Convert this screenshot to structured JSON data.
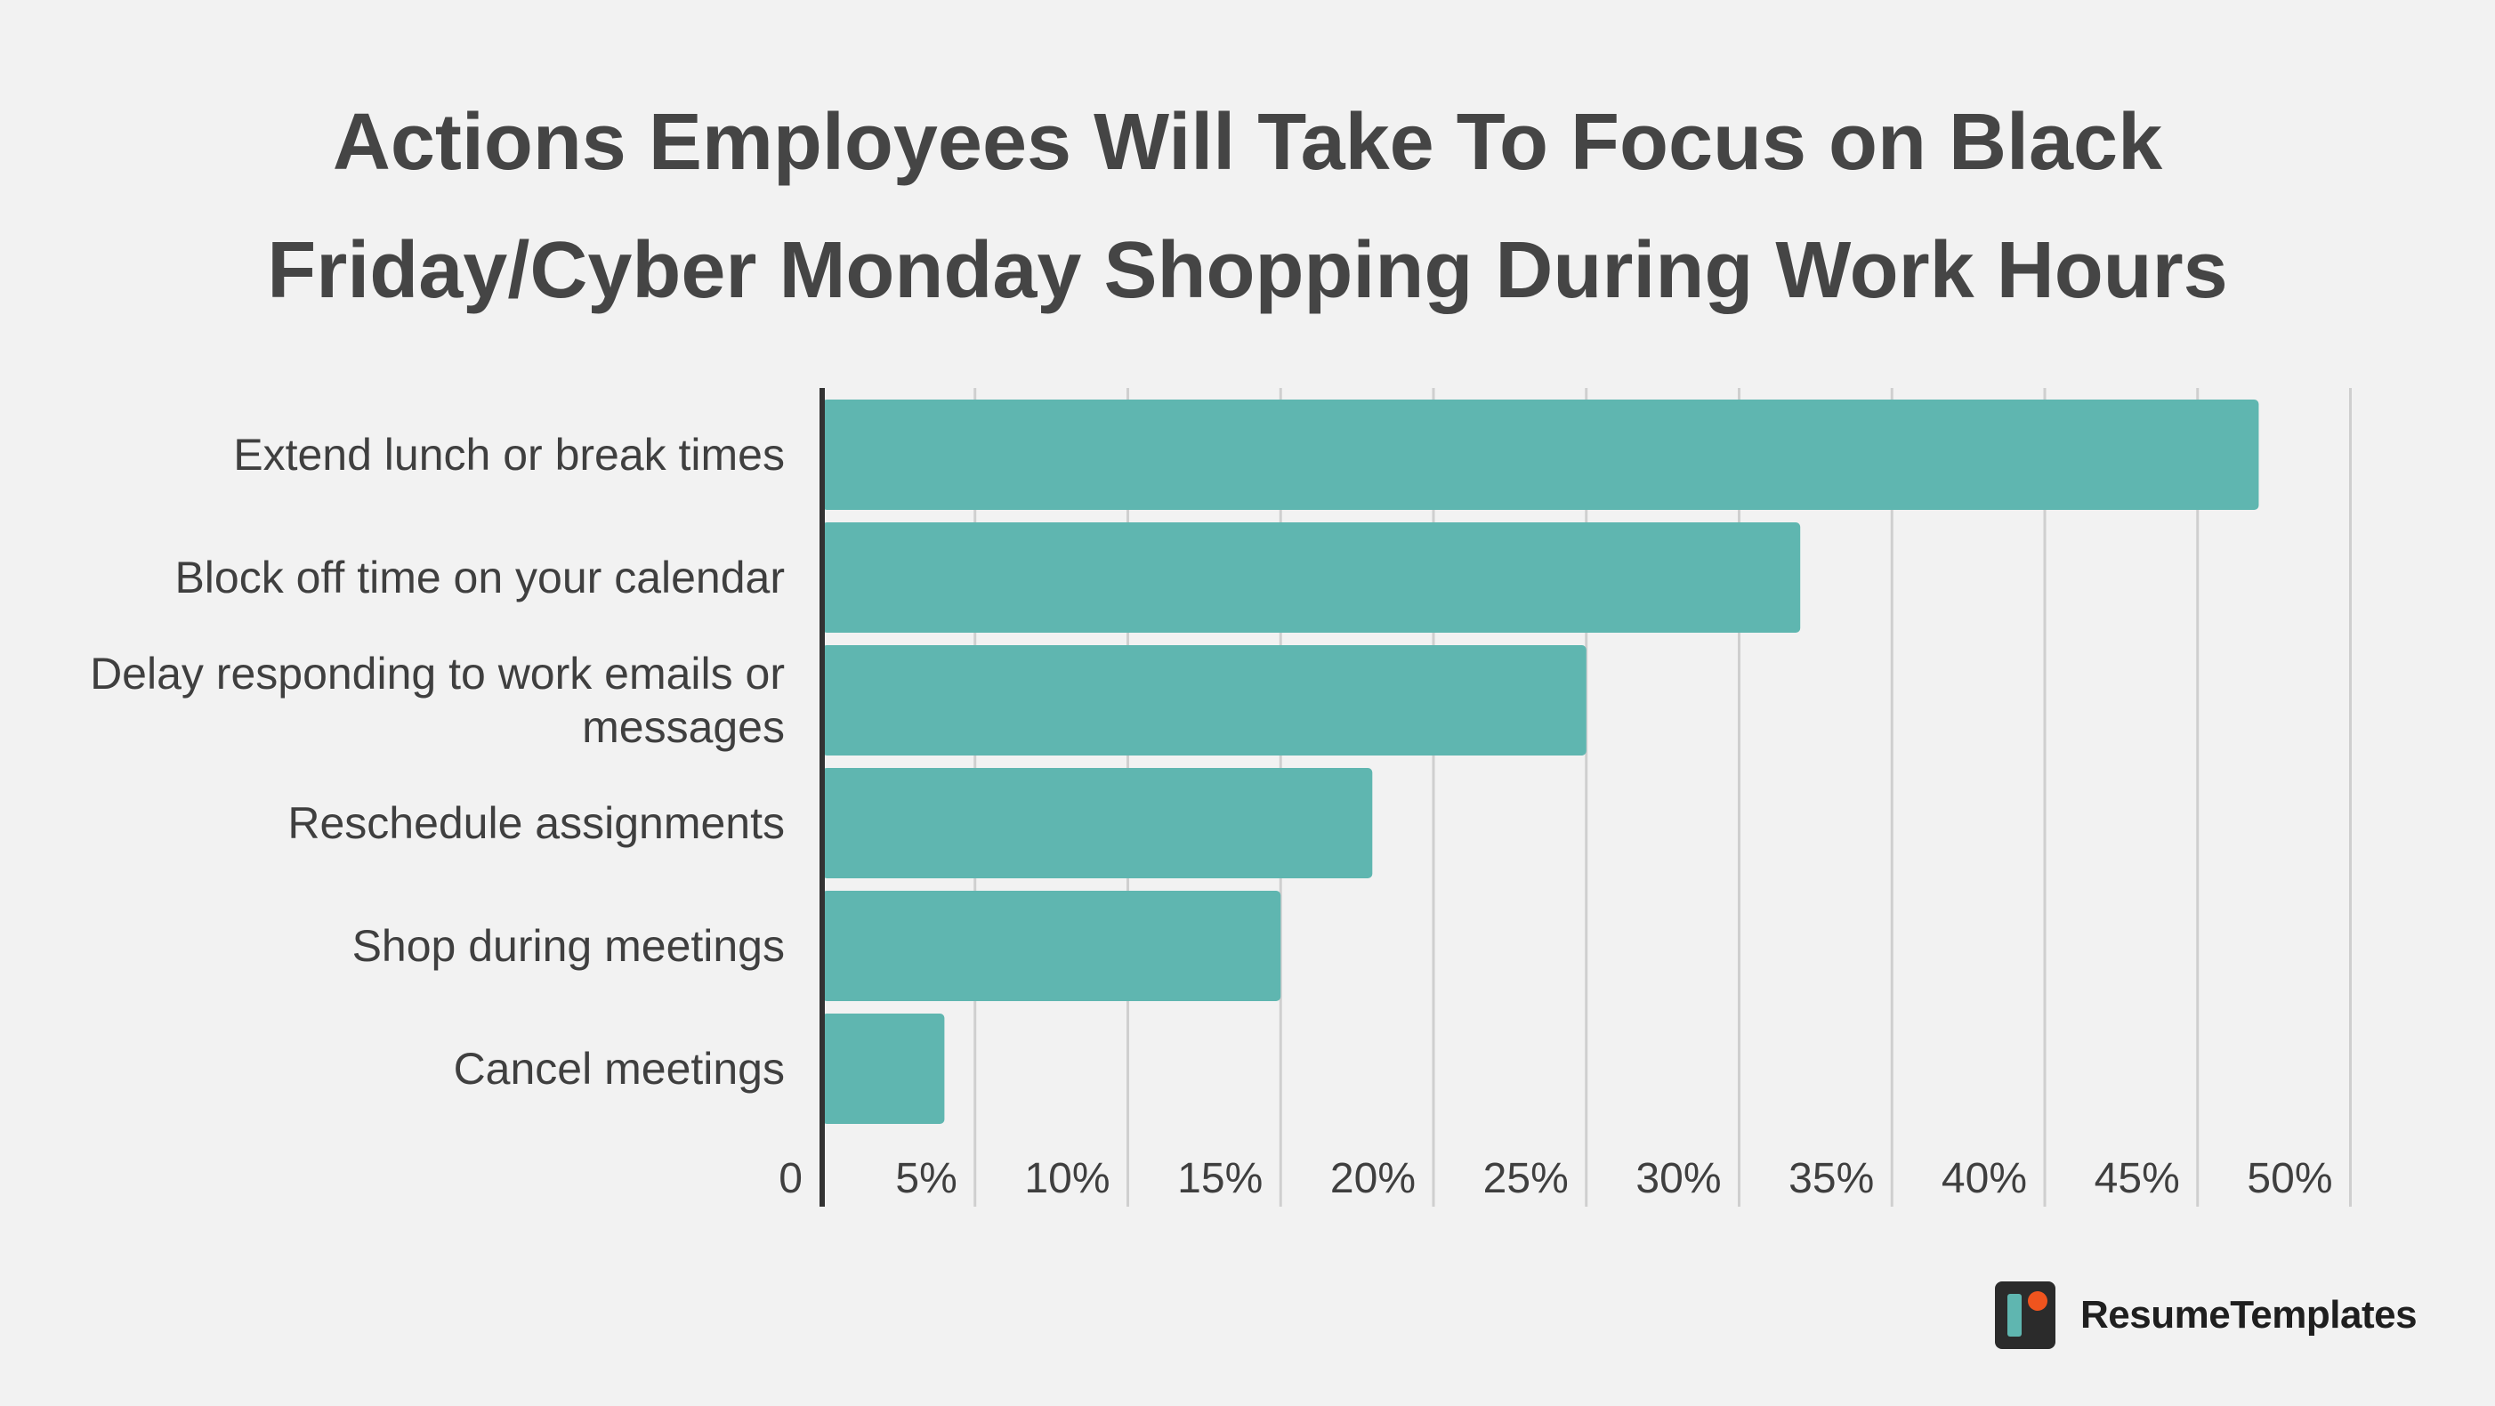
{
  "chart_data": {
    "type": "bar",
    "orientation": "horizontal",
    "title_lines": [
      "Actions Employees Will Take To Focus on Black",
      "Friday/Cyber Monday Shopping During Work Hours"
    ],
    "categories": [
      [
        "Extend lunch or break times"
      ],
      [
        "Block off time on your calendar"
      ],
      [
        "Delay responding to work emails or",
        "messages"
      ],
      [
        "Reschedule assignments"
      ],
      [
        "Shop during meetings"
      ],
      [
        "Cancel meetings"
      ]
    ],
    "values": [
      47,
      32,
      25,
      18,
      15,
      4
    ],
    "xlim": [
      0,
      50
    ],
    "x_ticks": [
      0,
      5,
      10,
      15,
      20,
      25,
      30,
      35,
      40,
      45,
      50
    ],
    "x_tick_labels": [
      "0",
      "5%",
      "10%",
      "15%",
      "20%",
      "25%",
      "30%",
      "35%",
      "40%",
      "45%",
      "50%"
    ],
    "grid": "vertical",
    "bar_color": "#5fb6b0",
    "axis_color": "#333333",
    "grid_color": "#cfcfcf"
  },
  "brand": {
    "name": "ResumeTemplates",
    "logo_icon": "resume-templates-logo-icon",
    "logo_bg": "#2b2b2b",
    "logo_accent": "#5fb6b0",
    "logo_dot": "#f0541e"
  }
}
